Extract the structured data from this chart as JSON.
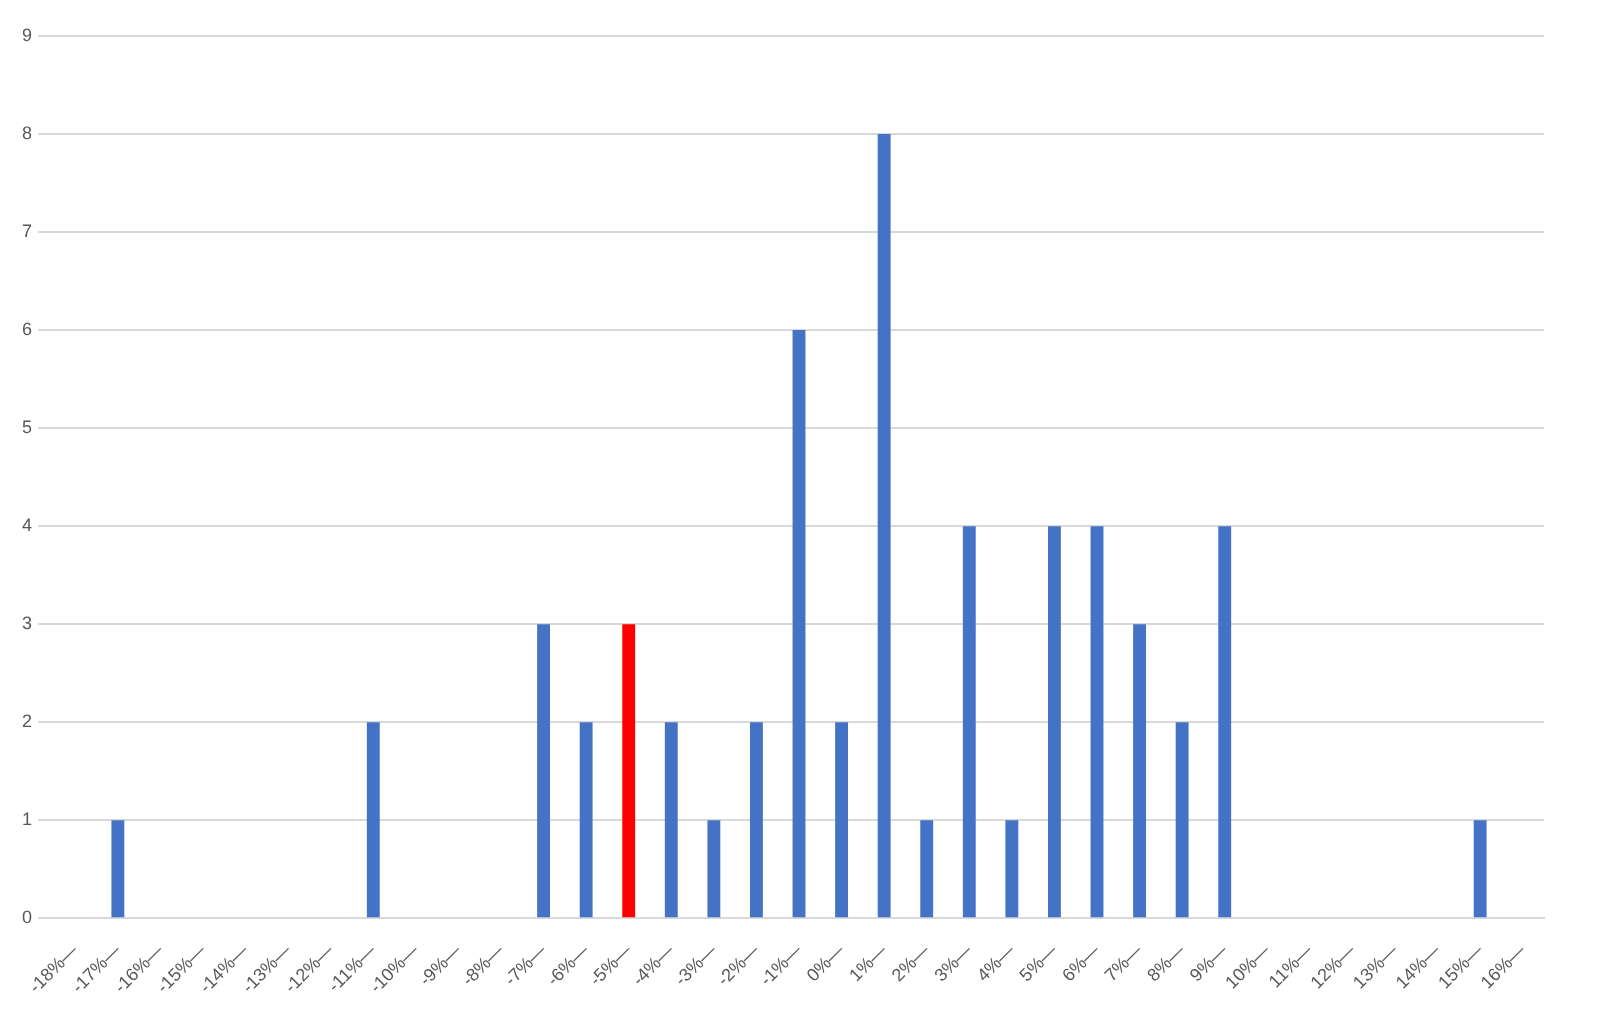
{
  "chart_data": {
    "type": "bar",
    "categories": [
      "-18%—",
      "-17%—",
      "-16%—",
      "-15%—",
      "-14%—",
      "-13%—",
      "-12%—",
      "-11%—",
      "-10%—",
      "-9%—",
      "-8%—",
      "-7%—",
      "-6%—",
      "-5%—",
      "-4%—",
      "-3%—",
      "-2%—",
      "-1%—",
      "0%—",
      "1%—",
      "2%—",
      "3%—",
      "4%—",
      "5%—",
      "6%—",
      "7%—",
      "8%—",
      "9%—",
      "10%—",
      "11%—",
      "12%—",
      "13%—",
      "14%—",
      "15%—",
      "16%—"
    ],
    "values": [
      0,
      1,
      0,
      0,
      0,
      0,
      0,
      2,
      0,
      0,
      0,
      3,
      2,
      3,
      2,
      1,
      2,
      6,
      2,
      8,
      1,
      4,
      1,
      4,
      4,
      3,
      2,
      4,
      0,
      0,
      0,
      0,
      0,
      1,
      0
    ],
    "colors": [
      "#4472c4",
      "#4472c4",
      "#4472c4",
      "#4472c4",
      "#4472c4",
      "#4472c4",
      "#4472c4",
      "#4472c4",
      "#4472c4",
      "#4472c4",
      "#4472c4",
      "#4472c4",
      "#4472c4",
      "#ff0000",
      "#4472c4",
      "#4472c4",
      "#4472c4",
      "#4472c4",
      "#4472c4",
      "#4472c4",
      "#4472c4",
      "#4472c4",
      "#4472c4",
      "#4472c4",
      "#4472c4",
      "#4472c4",
      "#4472c4",
      "#4472c4",
      "#4472c4",
      "#4472c4",
      "#4472c4",
      "#4472c4",
      "#4472c4",
      "#4472c4",
      "#4472c4"
    ],
    "ylim": [
      0,
      9
    ],
    "yticks": [
      0,
      1,
      2,
      3,
      4,
      5,
      6,
      7,
      8,
      9
    ],
    "grid": "y",
    "legend": false
  }
}
